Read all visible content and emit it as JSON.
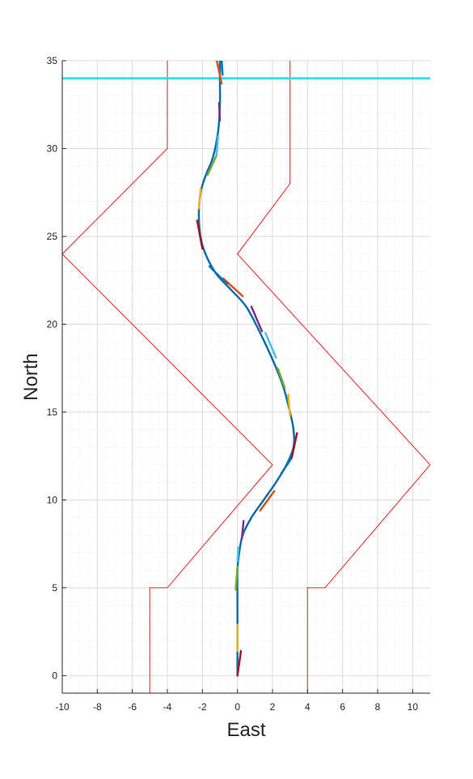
{
  "chart_data": {
    "type": "line",
    "title": "",
    "xlabel": "East",
    "ylabel": "North",
    "xlim": [
      -10,
      11
    ],
    "ylim": [
      -1,
      35
    ],
    "xticks": [
      -10,
      -8,
      -6,
      -4,
      -2,
      0,
      2,
      4,
      6,
      8,
      10
    ],
    "yticks": [
      0,
      5,
      10,
      15,
      20,
      25,
      30,
      35
    ],
    "grid": true,
    "minor_grid": true,
    "colors": {
      "boundary": "#e8413c",
      "path": "#0d6ea8",
      "finish_line": "#2fe3ee",
      "grid_major": "#d9d9d9",
      "grid_minor": "#e6e6e6",
      "axis": "#262626",
      "segment_palette": [
        "#a2142f",
        "#edb120",
        "#77ac30",
        "#4dbeee",
        "#7e2f8e",
        "#d95319",
        "#0072bd"
      ]
    },
    "finish_line_y": 34,
    "boundaries": [
      {
        "x": [
          -5,
          -5,
          -4,
          2,
          -10,
          -4,
          -4
        ],
        "y": [
          -1,
          5,
          5,
          12,
          24,
          30,
          35
        ]
      },
      {
        "x": [
          4,
          4,
          5,
          11,
          0,
          3,
          3
        ],
        "y": [
          -1,
          5,
          5,
          12,
          24,
          28,
          35
        ]
      }
    ],
    "path": {
      "x": [
        0,
        0,
        0,
        0,
        0.1,
        0.3,
        0.8,
        1.5,
        2.2,
        2.8,
        3.2,
        3.2,
        3,
        2.6,
        2,
        1.3,
        0.5,
        -0.4,
        -1.3,
        -2,
        -2.2,
        -2.1,
        -1.8,
        -1.4,
        -1.1,
        -1,
        -1,
        -1
      ],
      "y": [
        0.1,
        2,
        4,
        6,
        7,
        8,
        9,
        10,
        11,
        12,
        13,
        14,
        15,
        16.5,
        18,
        19.5,
        21,
        22,
        23,
        24.5,
        26,
        27.5,
        28.5,
        29.5,
        31,
        32.5,
        33.8,
        35
      ]
    },
    "segments": [
      {
        "x1": 0,
        "y1": 0,
        "x2": 0.2,
        "y2": 1.4
      },
      {
        "x1": 0,
        "y1": 1.4,
        "x2": 0,
        "y2": 2.9
      },
      {
        "x1": -0.1,
        "y1": 4.9,
        "x2": 0,
        "y2": 6.2
      },
      {
        "x1": 0,
        "y1": 6.5,
        "x2": 0.05,
        "y2": 7.3
      },
      {
        "x1": 0.25,
        "y1": 7.8,
        "x2": 0.35,
        "y2": 8.8
      },
      {
        "x1": 1.3,
        "y1": 9.4,
        "x2": 2.1,
        "y2": 10.5
      },
      {
        "x1": 2.5,
        "y1": 11.5,
        "x2": 3.1,
        "y2": 12.4
      },
      {
        "x1": 3.1,
        "y1": 12.4,
        "x2": 3.4,
        "y2": 13.8
      },
      {
        "x1": 3,
        "y1": 14.8,
        "x2": 2.9,
        "y2": 16
      },
      {
        "x1": 2.3,
        "y1": 17.5,
        "x2": 2.7,
        "y2": 16.4
      },
      {
        "x1": 1.6,
        "y1": 19.5,
        "x2": 2.2,
        "y2": 18.1
      },
      {
        "x1": 0.8,
        "y1": 21,
        "x2": 1.4,
        "y2": 19.6
      },
      {
        "x1": -0.8,
        "y1": 22.6,
        "x2": 0.3,
        "y2": 21.6
      },
      {
        "x1": -1.6,
        "y1": 23.3,
        "x2": -0.6,
        "y2": 22.3
      },
      {
        "x1": -2,
        "y1": 24.3,
        "x2": -2.3,
        "y2": 25.9
      },
      {
        "x1": -2.2,
        "y1": 26.6,
        "x2": -2.1,
        "y2": 27.7
      },
      {
        "x1": -1.7,
        "y1": 28.5,
        "x2": -1.2,
        "y2": 29.6
      },
      {
        "x1": -1.2,
        "y1": 29.6,
        "x2": -1.1,
        "y2": 30.7
      },
      {
        "x1": -1,
        "y1": 31.6,
        "x2": -1.05,
        "y2": 32.6
      },
      {
        "x1": -0.9,
        "y1": 33.7,
        "x2": -1.2,
        "y2": 35.1
      },
      {
        "x1": -0.85,
        "y1": 34.2,
        "x2": -0.9,
        "y2": 35
      }
    ]
  }
}
